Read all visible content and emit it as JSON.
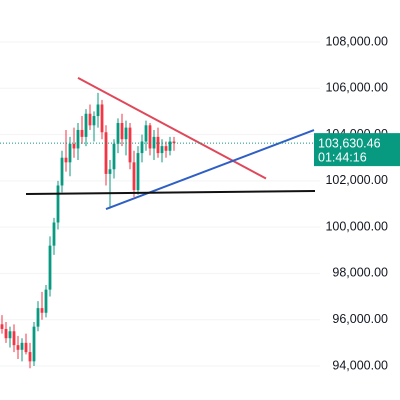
{
  "chart_data": {
    "type": "candlestick",
    "up_color": "#089981",
    "down_color": "#f23645",
    "xlim": [
      0,
      80
    ],
    "ylim": [
      92530,
      109815
    ],
    "yticks": [
      {
        "value": 94000,
        "label": "94,000.00"
      },
      {
        "value": 96000,
        "label": "96,000.00"
      },
      {
        "value": 98000,
        "label": "98,000.00"
      },
      {
        "value": 100000,
        "label": "100,000.00"
      },
      {
        "value": 102000,
        "label": "102,000.00"
      },
      {
        "value": 104000,
        "label": "104,000.00"
      },
      {
        "value": 106000,
        "label": "106,000.00"
      },
      {
        "value": 108000,
        "label": "108,000.00"
      }
    ],
    "grid": true,
    "candles": [
      [
        95800,
        96200,
        95400,
        95600
      ],
      [
        95600,
        95900,
        95000,
        95200
      ],
      [
        95200,
        95700,
        94800,
        95500
      ],
      [
        95500,
        95800,
        94600,
        94900
      ],
      [
        94900,
        95300,
        94300,
        94700
      ],
      [
        94700,
        95200,
        94200,
        95000
      ],
      [
        95000,
        95400,
        94500,
        94600
      ],
      [
        94600,
        95000,
        93900,
        94200
      ],
      [
        94200,
        95900,
        94000,
        95700
      ],
      [
        95700,
        96800,
        95500,
        96500
      ],
      [
        96500,
        97200,
        96000,
        96300
      ],
      [
        96300,
        97500,
        96100,
        97300
      ],
      [
        97300,
        99600,
        97000,
        99200
      ],
      [
        99200,
        100400,
        98800,
        100200
      ],
      [
        100200,
        102000,
        99900,
        101800
      ],
      [
        101800,
        103300,
        101500,
        103000
      ],
      [
        103000,
        104200,
        102400,
        102800
      ],
      [
        102800,
        103900,
        102200,
        103600
      ],
      [
        103600,
        104300,
        103000,
        103400
      ],
      [
        103400,
        104500,
        102900,
        104200
      ],
      [
        104200,
        104800,
        103600,
        103900
      ],
      [
        103900,
        105100,
        103500,
        104900
      ],
      [
        104900,
        105300,
        104200,
        104400
      ],
      [
        104400,
        105000,
        103700,
        104800
      ],
      [
        104800,
        105800,
        104300,
        105300
      ],
      [
        105300,
        105500,
        103800,
        104100
      ],
      [
        104100,
        104400,
        101800,
        102300
      ],
      [
        102300,
        102900,
        100800,
        102500
      ],
      [
        102500,
        103800,
        102100,
        103600
      ],
      [
        103600,
        104700,
        103200,
        104500
      ],
      [
        104500,
        104900,
        103500,
        103800
      ],
      [
        103800,
        104600,
        103100,
        104300
      ],
      [
        104300,
        104500,
        102500,
        102800
      ],
      [
        102800,
        103300,
        101300,
        101600
      ],
      [
        101600,
        103500,
        101400,
        103200
      ],
      [
        103200,
        104000,
        102800,
        103700
      ],
      [
        103700,
        104600,
        103300,
        104400
      ],
      [
        104400,
        104500,
        103100,
        103400
      ],
      [
        103400,
        104200,
        102900,
        103900
      ],
      [
        103900,
        104300,
        103000,
        103200
      ],
      [
        103200,
        103800,
        102800,
        103500
      ],
      [
        103500,
        103700,
        103000,
        103300
      ],
      [
        103300,
        103900,
        103100,
        103700
      ],
      [
        103700,
        103900,
        103300,
        103630.46
      ]
    ],
    "last_price": {
      "value": 103630.46,
      "label": "103,630.46"
    },
    "countdown": "01:44:16",
    "trendlines": [
      {
        "color": "#e0485a",
        "x": [
          19.5,
          66.5
        ],
        "y": [
          106450,
          102100
        ]
      },
      {
        "color": "#2f5fc4",
        "x": [
          26.5,
          78.5
        ],
        "y": [
          100783,
          104197
        ]
      },
      {
        "color": "#111111",
        "x": [
          6.5,
          78.75
        ],
        "y": [
          101431,
          101561
        ]
      }
    ]
  }
}
